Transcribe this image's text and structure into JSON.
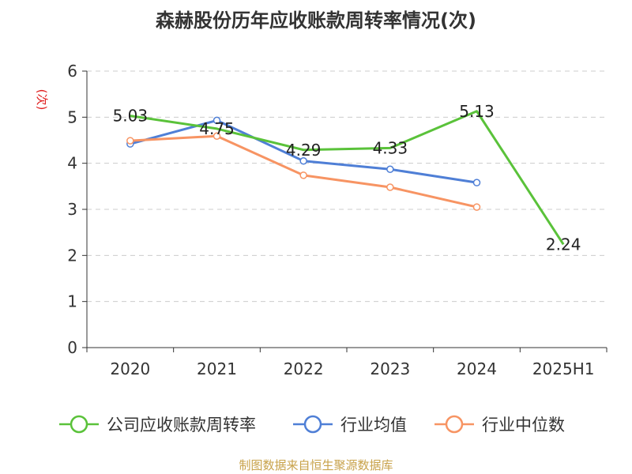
{
  "title": "森赫股份历年应收账款周转率情况(次)",
  "source_note": "制图数据来自恒生聚源数据库",
  "chart_data": {
    "type": "line",
    "title": "森赫股份历年应收账款周转率情况(次)",
    "xlabel": "",
    "ylabel": "(次)",
    "categories": [
      "2020",
      "2021",
      "2022",
      "2023",
      "2024",
      "2025H1"
    ],
    "ylim": [
      0,
      6
    ],
    "yticks": [
      0,
      1,
      2,
      3,
      4,
      5,
      6
    ],
    "grid": true,
    "legend_position": "bottom",
    "series": [
      {
        "name": "公司应收账款周转率",
        "color": "#5ac23a",
        "values": [
          5.03,
          4.75,
          4.29,
          4.33,
          5.13,
          2.24
        ],
        "labels": [
          "5.03",
          "4.75",
          "4.29",
          "4.33",
          "5.13",
          "2.24"
        ],
        "markers": false
      },
      {
        "name": "行业均值",
        "color": "#4f7fd6",
        "values": [
          4.42,
          4.93,
          4.05,
          3.87,
          3.58,
          null
        ],
        "markers": true
      },
      {
        "name": "行业中位数",
        "color": "#f79463",
        "values": [
          4.49,
          4.59,
          3.74,
          3.48,
          3.05,
          null
        ],
        "markers": true
      }
    ]
  }
}
